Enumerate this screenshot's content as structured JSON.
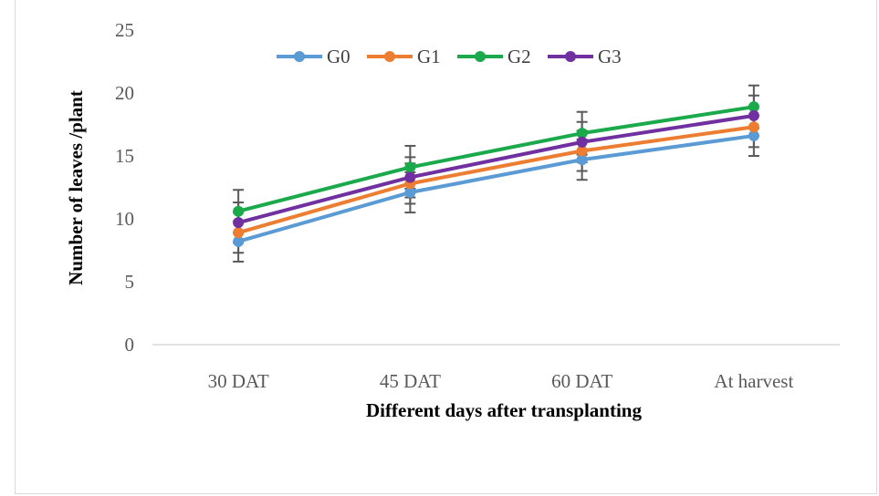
{
  "chart_data": {
    "type": "line",
    "title": "",
    "xlabel": "Different days after transplanting",
    "ylabel": "Number of leaves /plant",
    "categories": [
      "30 DAT",
      "45 DAT",
      "60 DAT",
      "At harvest"
    ],
    "ylim": [
      0,
      25
    ],
    "yticks": [
      "0",
      "5",
      "10",
      "15",
      "20",
      "25"
    ],
    "grid": false,
    "legend_position": "top",
    "error_bars": true,
    "series": [
      {
        "name": "G0",
        "color": "#5B9BD5",
        "values": [
          8.2,
          12.1,
          14.7,
          16.6
        ],
        "error": [
          1.6,
          1.6,
          1.6,
          1.6
        ]
      },
      {
        "name": "G1",
        "color": "#ED7D31",
        "values": [
          8.9,
          12.8,
          15.4,
          17.3
        ],
        "error": [
          1.6,
          1.6,
          1.6,
          1.6
        ]
      },
      {
        "name": "G2",
        "color": "#1AA94B",
        "values": [
          10.6,
          14.1,
          16.8,
          18.9
        ],
        "error": [
          1.7,
          1.7,
          1.7,
          1.7
        ]
      },
      {
        "name": "G3",
        "color": "#7030A0",
        "values": [
          9.7,
          13.3,
          16.1,
          18.2
        ],
        "error": [
          1.6,
          1.6,
          1.6,
          1.6
        ]
      }
    ]
  }
}
